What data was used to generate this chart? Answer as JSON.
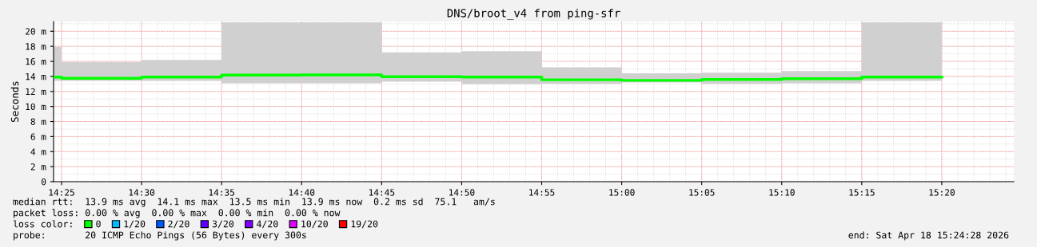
{
  "chart_data": {
    "type": "step",
    "title": "DNS/broot_v4 from ping-sfr",
    "ylabel": "Seconds",
    "x": [
      14.40833,
      14.41667,
      14.5,
      14.58333,
      14.66667,
      14.75,
      14.83333,
      14.91667,
      15.0,
      15.08333,
      15.16667,
      15.25,
      15.33333
    ],
    "series": [
      {
        "name": "0",
        "color": "#00ff00",
        "values": [
          13.9,
          13.76,
          13.9,
          14.18,
          14.2,
          13.97,
          13.9,
          13.55,
          13.47,
          13.6,
          13.7,
          13.9,
          13.9
        ],
        "lower": [
          13.4,
          13.4,
          13.4,
          13.1,
          13.1,
          13.3,
          12.95,
          13.0,
          13.2,
          13.0,
          13.1,
          13.4,
          13.4
        ],
        "upper": [
          17.9,
          15.9,
          16.2,
          21.2,
          21.2,
          17.2,
          17.35,
          15.2,
          14.4,
          14.5,
          14.7,
          21.2,
          21.2
        ]
      },
      {
        "name": "1/20",
        "color": "#00b8ff",
        "values": [
          null,
          null,
          null,
          null,
          null,
          null,
          null,
          null,
          null,
          null,
          null,
          null,
          null
        ]
      },
      {
        "name": "2/20",
        "color": "#0059ff",
        "values": [
          null,
          null,
          null,
          null,
          null,
          null,
          null,
          null,
          null,
          null,
          null,
          null,
          null
        ]
      },
      {
        "name": "3/20",
        "color": "#5e00ff",
        "values": [
          null,
          null,
          null,
          null,
          null,
          null,
          null,
          null,
          null,
          null,
          null,
          null,
          null
        ]
      },
      {
        "name": "4/20",
        "color": "#7e00ff",
        "values": [
          null,
          null,
          null,
          null,
          null,
          null,
          null,
          null,
          null,
          null,
          null,
          null,
          null
        ]
      },
      {
        "name": "10/20",
        "color": "#dd00ff",
        "values": [
          null,
          null,
          null,
          null,
          null,
          null,
          null,
          null,
          null,
          null,
          null,
          null,
          null
        ]
      },
      {
        "name": "19/20",
        "color": "#ff0000",
        "values": [
          null,
          null,
          null,
          null,
          null,
          null,
          null,
          null,
          null,
          null,
          null,
          null,
          null
        ]
      }
    ],
    "legend_title": "loss color:",
    "legend": "bottom left",
    "xlim": [
      14.40833,
      15.40833
    ],
    "xticks": [
      {
        "value": 14.41667,
        "label": "14:25"
      },
      {
        "value": 14.5,
        "label": "14:30"
      },
      {
        "value": 14.58333,
        "label": "14:35"
      },
      {
        "value": 14.66667,
        "label": "14:40"
      },
      {
        "value": 14.75,
        "label": "14:45"
      },
      {
        "value": 14.83333,
        "label": "14:50"
      },
      {
        "value": 14.91667,
        "label": "14:55"
      },
      {
        "value": 15.0,
        "label": "15:00"
      },
      {
        "value": 15.08333,
        "label": "15:05"
      },
      {
        "value": 15.16667,
        "label": "15:10"
      },
      {
        "value": 15.25,
        "label": "15:15"
      },
      {
        "value": 15.33333,
        "label": "15:20"
      }
    ],
    "ylim": [
      0,
      21.3
    ],
    "yticks": [
      {
        "value": 0,
        "label": "0"
      },
      {
        "value": 2,
        "label": "2 m"
      },
      {
        "value": 4,
        "label": "4 m"
      },
      {
        "value": 6,
        "label": "6 m"
      },
      {
        "value": 8,
        "label": "8 m"
      },
      {
        "value": 10,
        "label": "10 m"
      },
      {
        "value": 12,
        "label": "12 m"
      },
      {
        "value": 14,
        "label": "14 m"
      },
      {
        "value": 16,
        "label": "16 m"
      },
      {
        "value": 18,
        "label": "18 m"
      },
      {
        "value": 20,
        "label": "20 m"
      }
    ],
    "grid": true,
    "annotations": [
      "median rtt:  13.9 ms avg  14.1 ms max  13.5 ms min  13.9 ms now  0.2 ms sd  75.1   am/s",
      "packet loss: 0.00 % avg  0.00 % max  0.00 % min  0.00 % now",
      "probe:       20 ICMP Echo Pings (56 Bytes) every 300s",
      "end: Sat Apr 18 15:24:28 2026"
    ]
  }
}
